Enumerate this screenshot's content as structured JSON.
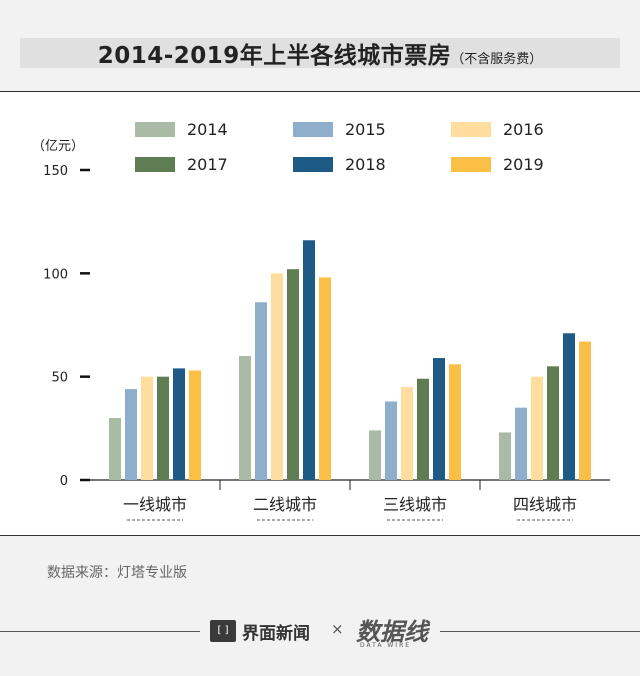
{
  "header": {
    "title": "2014-2019年上半各线城市票房",
    "subtitle": "（不含服务费）"
  },
  "chart_data": {
    "type": "bar",
    "title": "2014-2019年上半各线城市票房（不含服务费）",
    "ylabel": "（亿元）",
    "xlabel": "",
    "ylim": [
      0,
      150
    ],
    "yticks": [
      0,
      50,
      100,
      150
    ],
    "categories": [
      "一线城市",
      "二线城市",
      "三线城市",
      "四线城市"
    ],
    "series": [
      {
        "name": "2014",
        "color": "#a9bba5",
        "values": [
          30,
          60,
          24,
          23
        ]
      },
      {
        "name": "2015",
        "color": "#8eaecb",
        "values": [
          44,
          86,
          38,
          35
        ]
      },
      {
        "name": "2016",
        "color": "#fedd9e",
        "values": [
          50,
          100,
          45,
          50
        ]
      },
      {
        "name": "2017",
        "color": "#5f7d52",
        "values": [
          50,
          102,
          49,
          55
        ]
      },
      {
        "name": "2018",
        "color": "#1e5a86",
        "values": [
          54,
          116,
          59,
          71
        ]
      },
      {
        "name": "2019",
        "color": "#fcbf45",
        "values": [
          53,
          98,
          56,
          67
        ]
      }
    ],
    "legend_position": "top"
  },
  "source": "数据来源：灯塔专业版",
  "footer": {
    "brand": "界面新闻",
    "brand_icon": "[ ]",
    "times": "×",
    "logo": "数据线",
    "logo_sub": "DATA WIRE"
  }
}
